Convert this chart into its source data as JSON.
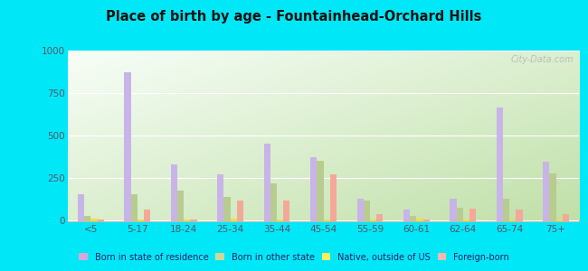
{
  "title": "Place of birth by age - Fountainhead-Orchard Hills",
  "categories": [
    "<5",
    "5-17",
    "18-24",
    "25-34",
    "35-44",
    "45-54",
    "55-59",
    "60-61",
    "62-64",
    "65-74",
    "75+"
  ],
  "series": {
    "Born in state of residence": [
      155,
      870,
      330,
      275,
      455,
      375,
      130,
      65,
      130,
      665,
      345
    ],
    "Born in other state": [
      30,
      155,
      175,
      140,
      220,
      350,
      120,
      30,
      75,
      130,
      280
    ],
    "Native, outside of US": [
      12,
      10,
      10,
      15,
      10,
      10,
      10,
      12,
      10,
      10,
      10
    ],
    "Foreign-born": [
      10,
      65,
      10,
      120,
      120,
      275,
      40,
      10,
      70,
      65,
      40
    ]
  },
  "colors": {
    "Born in state of residence": "#c8b4e8",
    "Born in other state": "#b8cc90",
    "Native, outside of US": "#f0e040",
    "Foreign-born": "#f4a898"
  },
  "legend_colors": {
    "Born in state of residence": "#d8a8d8",
    "Born in other state": "#d0d898",
    "Native, outside of US": "#f8f060",
    "Foreign-born": "#f8b8b0"
  },
  "ylim": [
    0,
    1000
  ],
  "yticks": [
    0,
    250,
    500,
    750,
    1000
  ],
  "outer_background": "#00e8f8",
  "plot_bg_top": "#f8fef8",
  "plot_bg_bottom": "#c8e8b0",
  "grid_color": "#e0ece0",
  "watermark": "City-Data.com",
  "bar_width": 0.14
}
